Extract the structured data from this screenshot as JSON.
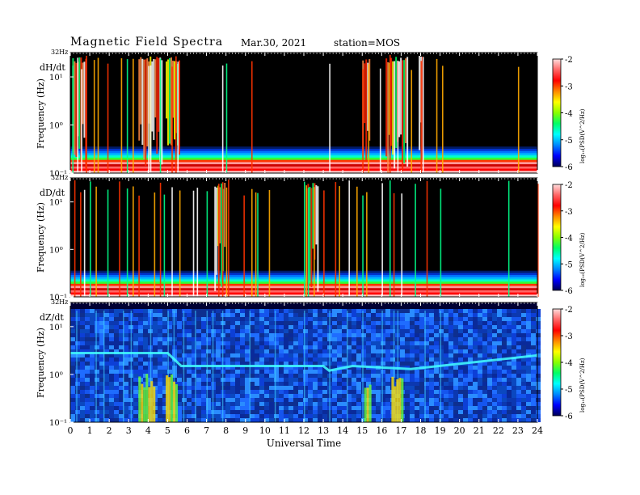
{
  "header": {
    "title": "Magnetic  Field  Spectra",
    "date": "Mar.30, 2021",
    "station": "station=MOS"
  },
  "chart_data": {
    "type": "heatmap",
    "xlabel": "Universal Time",
    "xlim": [
      0,
      24
    ],
    "x_ticks": [
      "0",
      "1",
      "2",
      "3",
      "4",
      "5",
      "6",
      "7",
      "8",
      "9",
      "10",
      "11",
      "12",
      "13",
      "14",
      "15",
      "16",
      "17",
      "18",
      "19",
      "20",
      "21",
      "22",
      "23",
      "24"
    ],
    "ylabel": "Frequency  (Hz)",
    "y_scale": "log",
    "ylim": [
      0.1,
      32
    ],
    "y_ticks": [
      "10¹",
      "10⁰",
      "10⁻¹"
    ],
    "y_top_label": "32Hz",
    "colorbar": {
      "label": "log₁₀(PSD(V^2/Hz)",
      "range": [
        -6,
        -2
      ],
      "ticks": [
        "-2",
        "-3",
        "-4",
        "-5",
        "-6"
      ],
      "colors": [
        "#000055",
        "#0000ff",
        "#0088ff",
        "#00ffff",
        "#00ff66",
        "#88ff00",
        "#ffff00",
        "#ff8800",
        "#ff0000",
        "#ff6666",
        "#ffdddd"
      ]
    },
    "panels": [
      {
        "component": "dH/dt",
        "bursts_ut": [
          0.1,
          0.35,
          0.55,
          0.8,
          1.2,
          1.4,
          1.9,
          2.6,
          2.9,
          3.2,
          4.0,
          4.1,
          4.6,
          5.2,
          5.4,
          5.5,
          7.8,
          8.0,
          9.3,
          13.3,
          15.0,
          15.3,
          15.9,
          16.4,
          16.8,
          17.5,
          18.0,
          18.1,
          18.8,
          19.1,
          23.0
        ],
        "wide_bursts_ut": [
          [
            0.1,
            0.8
          ],
          [
            3.5,
            4.7
          ],
          [
            4.9,
            5.6
          ],
          [
            15.0,
            15.4
          ],
          [
            16.2,
            17.3
          ],
          [
            17.9,
            18.1
          ]
        ]
      },
      {
        "component": "dD/dt",
        "bursts_ut": [
          0.2,
          0.5,
          0.7,
          1.0,
          1.3,
          1.9,
          2.5,
          2.9,
          3.2,
          3.5,
          4.3,
          4.6,
          4.8,
          5.2,
          5.6,
          6.3,
          6.5,
          7.0,
          7.6,
          7.8,
          8.0,
          8.1,
          8.9,
          9.3,
          9.5,
          9.6,
          10.2,
          12.0,
          12.1,
          12.2,
          12.5,
          13.0,
          13.6,
          13.8,
          14.3,
          14.7,
          15.0,
          15.2,
          16.0,
          16.4,
          16.6,
          17.0,
          17.7,
          18.3,
          19.0,
          22.5,
          24.0
        ],
        "wide_bursts_ut": [
          [
            7.4,
            7.9
          ],
          [
            12.1,
            12.7
          ]
        ]
      },
      {
        "component": "dZ/dt",
        "trace_hz": [
          [
            0,
            2.8
          ],
          [
            5.0,
            2.8
          ],
          [
            5.7,
            1.5
          ],
          [
            13.0,
            1.5
          ],
          [
            13.3,
            1.2
          ],
          [
            14.5,
            1.5
          ],
          [
            17.5,
            1.3
          ],
          [
            24,
            2.5
          ]
        ],
        "bursts_ut": [
          0.3,
          1.3,
          1.7,
          2.7,
          3.1,
          4.1,
          5.0,
          5.3,
          5.8,
          6.4,
          7.0,
          7.3,
          7.8,
          9.2,
          10.5,
          12.0,
          13.3,
          14.2,
          15.0,
          16.0,
          16.6,
          16.8,
          18.2,
          19.0
        ],
        "wide_bursts_ut": [
          [
            3.5,
            4.3
          ],
          [
            4.9,
            5.4
          ],
          [
            15.1,
            15.4
          ],
          [
            16.5,
            17.0
          ]
        ]
      }
    ]
  }
}
